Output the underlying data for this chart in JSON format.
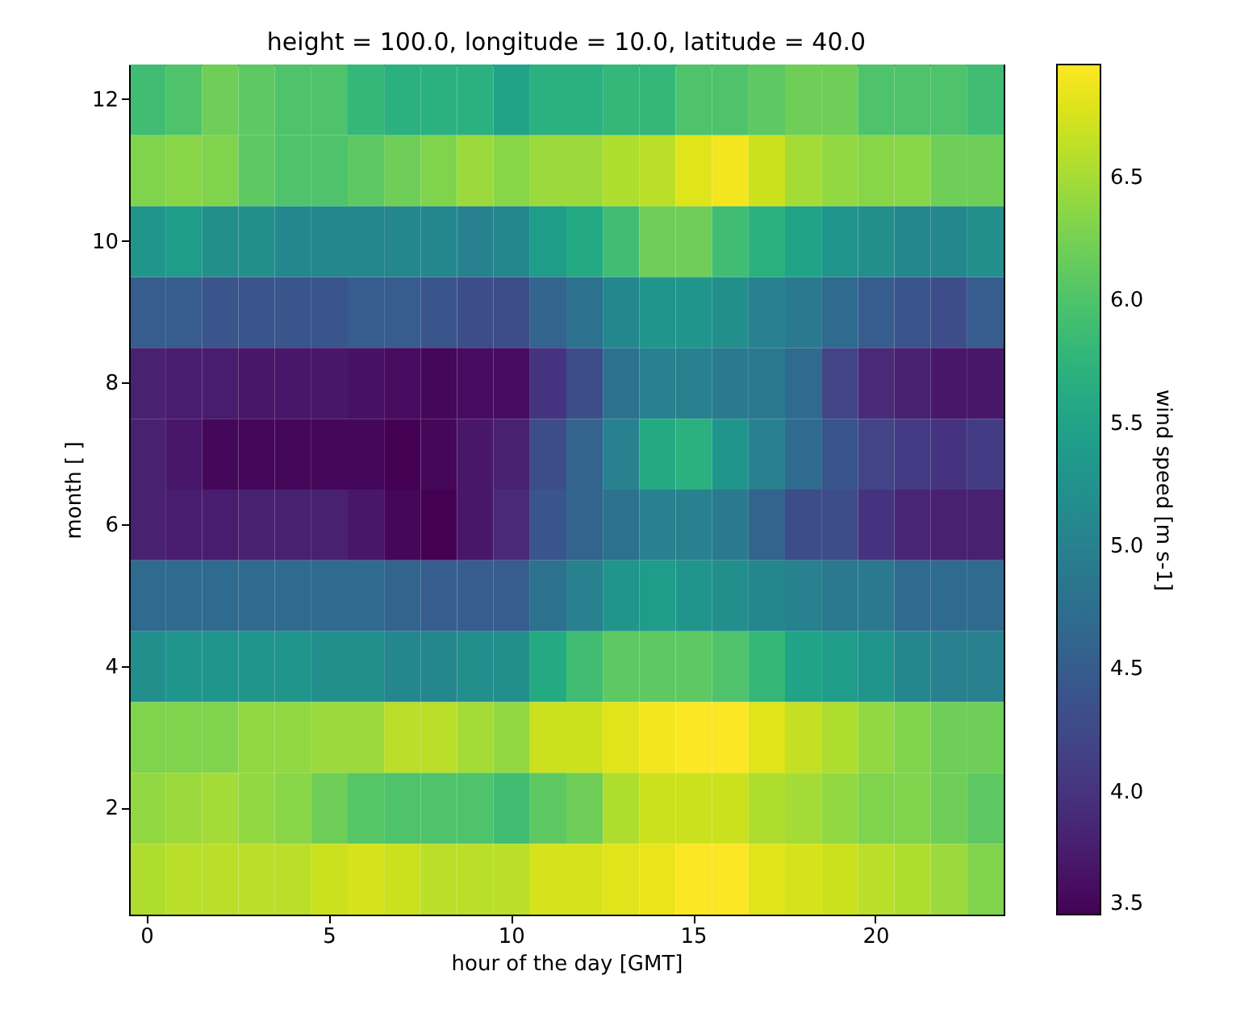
{
  "chart_data": {
    "type": "heatmap",
    "title": "height = 100.0, longitude = 10.0, latitude = 40.0",
    "xlabel": "hour of the day [GMT]",
    "ylabel": "month [ ]",
    "clabel": "wind speed [m s-1]",
    "categories": [
      "0",
      null,
      null,
      null,
      null,
      "5",
      null,
      null,
      null,
      null,
      "10",
      null,
      null,
      null,
      null,
      "15",
      null,
      null,
      null,
      null,
      "20",
      null,
      null,
      null
    ],
    "y_categories": [
      "12",
      null,
      "10",
      null,
      "8",
      null,
      "6",
      null,
      "4",
      null,
      "2",
      null
    ],
    "cells": [
      [
        5.9,
        6.0,
        6.2,
        6.1,
        6.0,
        6.0,
        5.8,
        5.7,
        5.7,
        5.7,
        5.5,
        5.7,
        5.7,
        5.8,
        5.8,
        6.0,
        6.0,
        6.1,
        6.2,
        6.2,
        6.0,
        6.0,
        6.0,
        5.9
      ],
      [
        6.3,
        6.35,
        6.3,
        6.1,
        6.0,
        6.0,
        6.1,
        6.2,
        6.3,
        6.45,
        6.35,
        6.45,
        6.45,
        6.55,
        6.6,
        6.8,
        6.9,
        6.7,
        6.5,
        6.4,
        6.35,
        6.35,
        6.2,
        6.2
      ],
      [
        5.3,
        5.4,
        5.2,
        5.2,
        5.1,
        5.1,
        5.1,
        5.1,
        5.1,
        5.0,
        5.1,
        5.4,
        5.6,
        5.9,
        6.2,
        6.2,
        5.9,
        5.7,
        5.5,
        5.3,
        5.2,
        5.1,
        5.1,
        5.2
      ],
      [
        4.5,
        4.5,
        4.4,
        4.4,
        4.4,
        4.4,
        4.5,
        4.5,
        4.4,
        4.3,
        4.3,
        4.6,
        4.8,
        5.1,
        5.3,
        5.3,
        5.2,
        5.0,
        4.9,
        4.7,
        4.5,
        4.4,
        4.3,
        4.5
      ],
      [
        3.8,
        3.75,
        3.75,
        3.7,
        3.7,
        3.7,
        3.65,
        3.6,
        3.55,
        3.6,
        3.6,
        4.0,
        4.3,
        4.8,
        5.0,
        5.0,
        4.9,
        4.9,
        4.7,
        4.2,
        3.9,
        3.8,
        3.7,
        3.7
      ],
      [
        3.8,
        3.7,
        3.55,
        3.55,
        3.55,
        3.55,
        3.55,
        3.5,
        3.55,
        3.7,
        3.8,
        4.3,
        4.6,
        5.0,
        5.6,
        5.7,
        5.3,
        5.0,
        4.7,
        4.4,
        4.2,
        4.1,
        4.0,
        4.1
      ],
      [
        3.8,
        3.75,
        3.75,
        3.8,
        3.8,
        3.8,
        3.7,
        3.55,
        3.5,
        3.7,
        3.9,
        4.4,
        4.6,
        4.8,
        5.0,
        5.0,
        4.9,
        4.6,
        4.3,
        4.3,
        4.0,
        3.85,
        3.8,
        3.8
      ],
      [
        4.7,
        4.7,
        4.7,
        4.7,
        4.7,
        4.7,
        4.7,
        4.6,
        4.5,
        4.5,
        4.5,
        4.8,
        5.0,
        5.3,
        5.4,
        5.3,
        5.2,
        5.1,
        5.0,
        4.9,
        4.9,
        4.7,
        4.7,
        4.7
      ],
      [
        5.2,
        5.3,
        5.3,
        5.3,
        5.3,
        5.2,
        5.2,
        5.1,
        5.1,
        5.2,
        5.2,
        5.6,
        5.9,
        6.1,
        6.1,
        6.1,
        6.0,
        5.8,
        5.5,
        5.4,
        5.3,
        5.1,
        5.0,
        5.0
      ],
      [
        6.3,
        6.3,
        6.3,
        6.4,
        6.4,
        6.45,
        6.45,
        6.6,
        6.6,
        6.5,
        6.4,
        6.7,
        6.7,
        6.8,
        6.9,
        6.95,
        6.95,
        6.8,
        6.65,
        6.55,
        6.4,
        6.3,
        6.2,
        6.2
      ],
      [
        6.4,
        6.45,
        6.5,
        6.4,
        6.35,
        6.2,
        6.05,
        6.0,
        6.0,
        6.0,
        5.9,
        6.1,
        6.2,
        6.55,
        6.7,
        6.7,
        6.7,
        6.55,
        6.5,
        6.4,
        6.3,
        6.3,
        6.2,
        6.1
      ],
      [
        6.55,
        6.6,
        6.6,
        6.6,
        6.6,
        6.7,
        6.75,
        6.7,
        6.6,
        6.6,
        6.6,
        6.75,
        6.75,
        6.8,
        6.85,
        6.95,
        6.95,
        6.8,
        6.75,
        6.7,
        6.6,
        6.55,
        6.45,
        6.3
      ]
    ],
    "clim": [
      3.5,
      6.96
    ],
    "cticks": [
      3.5,
      {
        "value": 4,
        "label": "4.0"
      },
      4.5,
      {
        "value": 5,
        "label": "5.0"
      },
      5.5,
      {
        "value": 6,
        "label": "6.0"
      },
      6.5
    ]
  }
}
